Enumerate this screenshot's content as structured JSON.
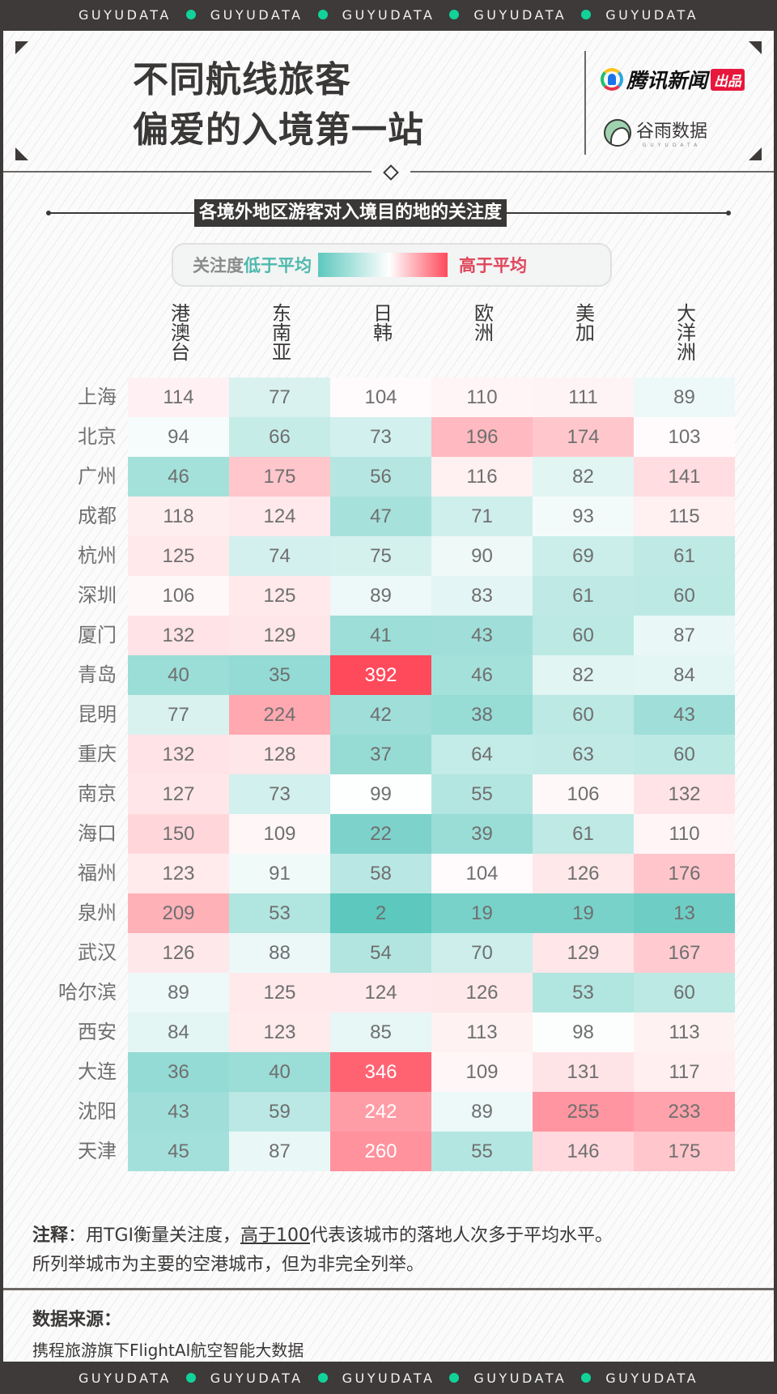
{
  "ticker": {
    "word": "GUYUDATA",
    "repeat": 5,
    "dot_color": "#11d39a"
  },
  "header": {
    "title_line1": "不同航线旅客",
    "title_line2": "偏爱的入境第一站",
    "logo_tencent": "腾讯新闻",
    "logo_tencent_badge": "出品",
    "logo_guyu": "谷雨数据",
    "logo_guyu_en": "GUYUDATA"
  },
  "subtitle": "各境外地区游客对入境目的地的关注度",
  "legend": {
    "prefix": "关注度",
    "low": "低于平均",
    "high": "高于平均",
    "low_color": "#5cc8be",
    "mid_color": "#ffffff",
    "high_color": "#ff4a5c"
  },
  "chart_data": {
    "type": "heatmap",
    "title": "各境外地区游客对入境目的地的关注度",
    "metric": "TGI",
    "baseline": 100,
    "columns": [
      "港澳台",
      "东南亚",
      "日韩",
      "欧洲",
      "美加",
      "大洋洲"
    ],
    "rows": [
      "上海",
      "北京",
      "广州",
      "成都",
      "杭州",
      "深圳",
      "厦门",
      "青岛",
      "昆明",
      "重庆",
      "南京",
      "海口",
      "福州",
      "泉州",
      "武汉",
      "哈尔滨",
      "西安",
      "大连",
      "沈阳",
      "天津"
    ],
    "values": [
      [
        114,
        77,
        104,
        110,
        111,
        89
      ],
      [
        94,
        66,
        73,
        196,
        174,
        103
      ],
      [
        46,
        175,
        56,
        116,
        82,
        141
      ],
      [
        118,
        124,
        47,
        71,
        93,
        115
      ],
      [
        125,
        74,
        75,
        90,
        69,
        61
      ],
      [
        106,
        125,
        89,
        83,
        61,
        60
      ],
      [
        132,
        129,
        41,
        43,
        60,
        87
      ],
      [
        40,
        35,
        392,
        46,
        82,
        84
      ],
      [
        77,
        224,
        42,
        38,
        60,
        43
      ],
      [
        132,
        128,
        37,
        64,
        63,
        60
      ],
      [
        127,
        73,
        99,
        55,
        106,
        132
      ],
      [
        150,
        109,
        22,
        39,
        61,
        110
      ],
      [
        123,
        91,
        58,
        104,
        126,
        176
      ],
      [
        209,
        53,
        2,
        19,
        19,
        13
      ],
      [
        126,
        88,
        54,
        70,
        129,
        167
      ],
      [
        89,
        125,
        124,
        126,
        53,
        60
      ],
      [
        84,
        123,
        85,
        113,
        98,
        113
      ],
      [
        36,
        40,
        346,
        109,
        131,
        117
      ],
      [
        43,
        59,
        242,
        89,
        255,
        233
      ],
      [
        45,
        87,
        260,
        55,
        146,
        175
      ]
    ],
    "legend": {
      "low_label": "低于平均",
      "high_label": "高于平均"
    }
  },
  "notes": {
    "label": "注释",
    "text_a": "：用TGI衡量关注度，",
    "underlined": "高于100",
    "text_b": "代表该城市的落地人次多于平均水平。",
    "line2": "所列举城市为主要的空港城市，但为非完全列举。"
  },
  "source": {
    "label": "数据来源：",
    "value": "携程旅游旗下FlightAI航空智能大数据"
  }
}
